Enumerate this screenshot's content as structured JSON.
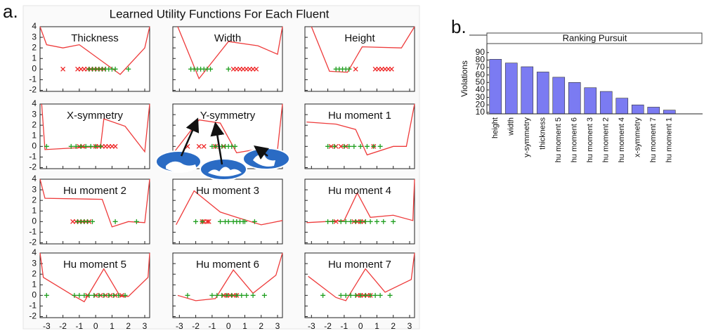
{
  "figure": {
    "title": "Learned Utility Functions For Each Fluent",
    "panel_labels": [
      "a.",
      "b."
    ]
  },
  "chart_data": [
    {
      "type": "line",
      "title": "Thickness",
      "xlim": [
        -3.4,
        3.3
      ],
      "ylim": [
        -2.1,
        4
      ],
      "xticks": [
        -3,
        -2,
        -1,
        0,
        1,
        2,
        3
      ],
      "yticks": [
        -2,
        -1,
        0,
        1,
        2,
        3,
        4
      ],
      "xtick_labels": false,
      "ytick_labels": true,
      "series": [
        {
          "color": "#ee3b3b",
          "x": [
            -3.4,
            -3,
            -2,
            -1,
            1.5,
            3,
            3.3
          ],
          "values": [
            4,
            2.3,
            2.0,
            2.3,
            -0.5,
            2,
            4
          ]
        },
        {
          "marker": "x",
          "color": "#ee2222",
          "x": [
            -2,
            -1.1,
            -0.9,
            -0.7,
            -0.5,
            -0.3,
            -0.1,
            0.1,
            0.3,
            0.5
          ],
          "values": [
            0,
            0,
            0,
            0,
            0,
            0,
            0,
            0,
            0,
            0
          ]
        },
        {
          "marker": "+",
          "color": "#22a022",
          "x": [
            -0.4,
            -0.2,
            0,
            0.2,
            0.4,
            0.6,
            0.8,
            1.0,
            1.2,
            2.0
          ],
          "values": [
            0,
            0,
            0,
            0,
            0,
            0,
            0,
            0,
            0,
            0
          ]
        }
      ]
    },
    {
      "type": "line",
      "title": "Width",
      "xlim": [
        -3.4,
        3.3
      ],
      "ylim": [
        -2.1,
        4
      ],
      "xticks": [
        -3,
        -2,
        -1,
        0,
        1,
        2,
        3
      ],
      "yticks": [
        -2,
        -1,
        0,
        1,
        2,
        3,
        4
      ],
      "xtick_labels": false,
      "ytick_labels": false,
      "series": [
        {
          "color": "#ee3b3b",
          "x": [
            -3.1,
            -1.8,
            0,
            1.8,
            3.0,
            3.3
          ],
          "values": [
            4,
            -0.9,
            2.6,
            2.2,
            1.4,
            4
          ]
        },
        {
          "marker": "x",
          "color": "#ee2222",
          "x": [
            0.3,
            0.5,
            0.7,
            0.9,
            1.1,
            1.3,
            1.5,
            1.7
          ],
          "values": [
            0,
            0,
            0,
            0,
            0,
            0,
            0,
            0
          ]
        },
        {
          "marker": "+",
          "color": "#22a022",
          "x": [
            -2.3,
            -2.1,
            -1.9,
            -1.7,
            -1.5,
            -1.3,
            -1.1,
            0.0
          ],
          "values": [
            0,
            0,
            0,
            0,
            0,
            0,
            0,
            0
          ]
        }
      ]
    },
    {
      "type": "line",
      "title": "Height",
      "xlim": [
        -3.4,
        3.3
      ],
      "ylim": [
        -2.1,
        4
      ],
      "xticks": [
        -3,
        -2,
        -1,
        0,
        1,
        2,
        3
      ],
      "yticks": [
        -2,
        -1,
        0,
        1,
        2,
        3,
        4
      ],
      "xtick_labels": false,
      "ytick_labels": false,
      "series": [
        {
          "color": "#ee3b3b",
          "x": [
            -3.0,
            -1.9,
            -0.8,
            0.1,
            2.5,
            3.3
          ],
          "values": [
            4,
            -0.2,
            -0.3,
            2.1,
            2.0,
            4
          ]
        },
        {
          "marker": "x",
          "color": "#ee2222",
          "x": [
            -0.3,
            0.9,
            1.1,
            1.3,
            1.5,
            1.7,
            1.9
          ],
          "values": [
            0,
            0,
            0,
            0,
            0,
            0,
            0
          ]
        },
        {
          "marker": "+",
          "color": "#22a022",
          "x": [
            -1.5,
            -1.3,
            -1.1,
            -0.9,
            -0.7
          ],
          "values": [
            0,
            0,
            0,
            0,
            0
          ]
        }
      ]
    },
    {
      "type": "line",
      "title": "X-symmetry",
      "xlim": [
        -3.4,
        3.3
      ],
      "ylim": [
        -2.1,
        4
      ],
      "xticks": [
        -3,
        -2,
        -1,
        0,
        1,
        2,
        3
      ],
      "yticks": [
        -2,
        -1,
        0,
        1,
        2,
        3,
        4
      ],
      "xtick_labels": false,
      "ytick_labels": true,
      "series": [
        {
          "color": "#ee3b3b",
          "x": [
            -3.3,
            -3.1,
            0.3,
            0.5,
            1.8,
            3.0,
            3.3
          ],
          "values": [
            4,
            -0.3,
            0,
            2.6,
            1.9,
            -0.5,
            4
          ]
        },
        {
          "marker": "x",
          "color": "#ee2222",
          "x": [
            -1.0,
            -0.8,
            0,
            0.2,
            0.4,
            0.6,
            0.8,
            1.0,
            1.2
          ],
          "values": [
            0,
            0,
            0,
            0,
            0,
            0,
            0,
            0,
            0
          ]
        },
        {
          "marker": "+",
          "color": "#22a022",
          "x": [
            -3.0,
            -1.5,
            -1.2,
            -0.9,
            -0.6,
            -0.3,
            0,
            0.3
          ],
          "values": [
            0,
            0,
            0,
            0,
            0,
            0,
            0,
            0
          ]
        }
      ]
    },
    {
      "type": "line",
      "title": "Y-symmetry",
      "xlim": [
        -3.4,
        3.3
      ],
      "ylim": [
        -2.1,
        4
      ],
      "xticks": [
        -3,
        -2,
        -1,
        0,
        1,
        2,
        3
      ],
      "yticks": [
        -2,
        -1,
        0,
        1,
        2,
        3,
        4
      ],
      "xtick_labels": false,
      "ytick_labels": false,
      "series": [
        {
          "color": "#ee3b3b",
          "x": [
            -3.3,
            -1.8,
            -0.5,
            0.5,
            2.0,
            3.0,
            3.3
          ],
          "values": [
            -0.5,
            2.5,
            2.2,
            -0.6,
            -0.2,
            -0.3,
            4
          ]
        },
        {
          "marker": "x",
          "color": "#ee2222",
          "x": [
            -2.5,
            -1.8,
            -1.5,
            -0.8,
            -0.3
          ],
          "values": [
            0,
            0,
            0,
            0,
            0
          ]
        },
        {
          "marker": "+",
          "color": "#22a022",
          "x": [
            -1.0,
            -0.8,
            -0.6,
            -0.4,
            -0.2,
            0,
            0.2,
            0.4
          ],
          "values": [
            0,
            0,
            0,
            0,
            0,
            0,
            0,
            0
          ]
        }
      ]
    },
    {
      "type": "line",
      "title": "Hu moment 1",
      "xlim": [
        -3.4,
        3.3
      ],
      "ylim": [
        -2.1,
        4
      ],
      "xticks": [
        -3,
        -2,
        -1,
        0,
        1,
        2,
        3
      ],
      "yticks": [
        -2,
        -1,
        0,
        1,
        2,
        3,
        4
      ],
      "xtick_labels": false,
      "ytick_labels": false,
      "series": [
        {
          "color": "#ee3b3b",
          "x": [
            -3.3,
            -1.5,
            -0.3,
            0.4,
            2.0,
            2.8,
            3.3
          ],
          "values": [
            2.3,
            2.1,
            1.6,
            -0.8,
            0,
            0,
            4
          ]
        },
        {
          "marker": "x",
          "color": "#ee2222",
          "x": [
            -1.8,
            -1.5,
            -1.2,
            -0.9,
            0.8
          ],
          "values": [
            0,
            0,
            0,
            0,
            0
          ]
        },
        {
          "marker": "+",
          "color": "#22a022",
          "x": [
            -2.0,
            -1.6,
            -1.0,
            -0.7,
            -0.4,
            0,
            0.4,
            0.8,
            1.2
          ],
          "values": [
            0,
            0,
            0,
            0,
            0,
            0,
            0,
            0,
            0
          ]
        }
      ]
    },
    {
      "type": "line",
      "title": "Hu moment 2",
      "xlim": [
        -3.4,
        3.3
      ],
      "ylim": [
        -2.1,
        4
      ],
      "xticks": [
        -3,
        -2,
        -1,
        0,
        1,
        2,
        3
      ],
      "yticks": [
        -2,
        -1,
        0,
        1,
        2,
        3,
        4
      ],
      "xtick_labels": false,
      "ytick_labels": true,
      "series": [
        {
          "color": "#ee3b3b",
          "x": [
            -3.4,
            -3.1,
            0.4,
            1.0,
            2.0,
            3.0,
            3.3
          ],
          "values": [
            4,
            2.2,
            2.1,
            -0.5,
            0,
            -0.1,
            4
          ]
        },
        {
          "marker": "x",
          "color": "#ee2222",
          "x": [
            -1.4,
            -1.2,
            -1.0,
            -0.8,
            -0.6,
            -0.4
          ],
          "values": [
            0,
            0,
            0,
            0,
            0,
            0
          ]
        },
        {
          "marker": "+",
          "color": "#22a022",
          "x": [
            -1.1,
            -0.9,
            -0.7,
            -0.5,
            -0.2,
            1.2,
            2.5
          ],
          "values": [
            0,
            0,
            0,
            0,
            0,
            0,
            0
          ]
        }
      ]
    },
    {
      "type": "line",
      "title": "Hu moment 3",
      "xlim": [
        -3.4,
        3.3
      ],
      "ylim": [
        -2.1,
        4
      ],
      "xticks": [
        -3,
        -2,
        -1,
        0,
        1,
        2,
        3
      ],
      "yticks": [
        -2,
        -1,
        0,
        1,
        2,
        3,
        4
      ],
      "xtick_labels": false,
      "ytick_labels": false,
      "series": [
        {
          "color": "#ee3b3b",
          "x": [
            -3.2,
            -2.1,
            -0.5,
            0.5,
            2.0,
            3.3
          ],
          "values": [
            -0.3,
            2.9,
            0.9,
            0.4,
            -0.3,
            0.1
          ]
        },
        {
          "marker": "x",
          "color": "#ee2222",
          "x": [
            -1.6,
            -1.5,
            -1.3,
            -1.2
          ],
          "values": [
            0,
            0,
            0,
            0
          ]
        },
        {
          "marker": "+",
          "color": "#22a022",
          "x": [
            -2.0,
            -1.6,
            -0.5,
            -0.2,
            0,
            0.3,
            0.5,
            0.7,
            0.9,
            1.0,
            1.6
          ],
          "values": [
            0,
            0,
            0,
            0,
            0,
            0,
            0,
            0,
            0,
            0,
            0
          ]
        }
      ]
    },
    {
      "type": "line",
      "title": "Hu moment 4",
      "xlim": [
        -3.4,
        3.3
      ],
      "ylim": [
        -2.1,
        4
      ],
      "xticks": [
        -3,
        -2,
        -1,
        0,
        1,
        2,
        3
      ],
      "yticks": [
        -2,
        -1,
        0,
        1,
        2,
        3,
        4
      ],
      "xtick_labels": false,
      "ytick_labels": false,
      "series": [
        {
          "color": "#ee3b3b",
          "x": [
            -3.3,
            -1.0,
            -0.2,
            0.6,
            2.0,
            3.2,
            3.3
          ],
          "values": [
            -0.1,
            0.1,
            2.7,
            0.4,
            0.6,
            0.1,
            4
          ]
        },
        {
          "marker": "x",
          "color": "#ee2222",
          "x": [
            -1.5,
            -0.4,
            -0.2,
            0,
            0.2
          ],
          "values": [
            0,
            0,
            0,
            0,
            0
          ]
        },
        {
          "marker": "+",
          "color": "#22a022",
          "x": [
            -2.0,
            -1.7,
            -1.2,
            -0.9,
            -0.6,
            -0.3,
            0,
            0.3,
            0.6,
            1.0,
            1.4,
            2.0
          ],
          "values": [
            0,
            0,
            0,
            0,
            0,
            0,
            0,
            0,
            0,
            0,
            0,
            0
          ]
        }
      ]
    },
    {
      "type": "line",
      "title": "Hu moment 5",
      "xlim": [
        -3.4,
        3.3
      ],
      "ylim": [
        -2.1,
        4
      ],
      "xticks": [
        -3,
        -2,
        -1,
        0,
        1,
        2,
        3
      ],
      "yticks": [
        -2,
        -1,
        0,
        1,
        2,
        3,
        4
      ],
      "xtick_labels": true,
      "ytick_labels": true,
      "series": [
        {
          "color": "#ee3b3b",
          "x": [
            -3.4,
            -3.2,
            -1.5,
            -0.7,
            0.5,
            1.5,
            2.0,
            3.2,
            3.3
          ],
          "values": [
            4,
            1.7,
            0.1,
            -0.6,
            2.5,
            -0.1,
            -0.1,
            1.7,
            4
          ]
        },
        {
          "marker": "x",
          "color": "#ee2222",
          "x": [
            -0.5,
            0,
            0.3,
            0.6,
            0.9,
            1.2,
            1.6
          ],
          "values": [
            0,
            0,
            0,
            0,
            0,
            0,
            0
          ]
        },
        {
          "marker": "+",
          "color": "#22a022",
          "x": [
            -3.0,
            -1.3,
            -1.0,
            -0.7,
            -0.4,
            -0.1,
            0.2,
            0.5,
            0.8,
            1.1,
            1.4,
            1.8
          ],
          "values": [
            0,
            0,
            0,
            0,
            0,
            0,
            0,
            0,
            0,
            0,
            0,
            0
          ]
        }
      ]
    },
    {
      "type": "line",
      "title": "Hu moment 6",
      "xlim": [
        -3.4,
        3.3
      ],
      "ylim": [
        -2.1,
        4
      ],
      "xticks": [
        -3,
        -2,
        -1,
        0,
        1,
        2,
        3
      ],
      "yticks": [
        -2,
        -1,
        0,
        1,
        2,
        3,
        4
      ],
      "xtick_labels": true,
      "ytick_labels": false,
      "series": [
        {
          "color": "#ee3b3b",
          "x": [
            -3.1,
            -2.0,
            -0.8,
            0.3,
            1.5,
            2.9,
            3.3
          ],
          "values": [
            0,
            -0.5,
            -0.3,
            2.4,
            0.2,
            1.9,
            4
          ]
        },
        {
          "marker": "x",
          "color": "#ee2222",
          "x": [
            -0.3,
            -0.1,
            0.1,
            0.3,
            0.5
          ],
          "values": [
            0,
            0,
            0,
            0,
            0
          ]
        },
        {
          "marker": "+",
          "color": "#22a022",
          "x": [
            -2.5,
            -1.0,
            -0.7,
            -0.4,
            -0.1,
            0.2,
            0.5,
            0.8,
            1.1,
            1.5,
            2.2
          ],
          "values": [
            0,
            0,
            0,
            0,
            0,
            0,
            0,
            0,
            0,
            0,
            0
          ]
        }
      ]
    },
    {
      "type": "line",
      "title": "Hu moment 7",
      "xlim": [
        -3.4,
        3.3
      ],
      "ylim": [
        -2.1,
        4
      ],
      "xticks": [
        -3,
        -2,
        -1,
        0,
        1,
        2,
        3
      ],
      "yticks": [
        -2,
        -1,
        0,
        1,
        2,
        3,
        4
      ],
      "xtick_labels": true,
      "ytick_labels": false,
      "series": [
        {
          "color": "#ee3b3b",
          "x": [
            -3.2,
            -1.5,
            -0.9,
            0.3,
            1.5,
            3.1,
            3.3
          ],
          "values": [
            1.8,
            -0.2,
            -0.5,
            2.5,
            0.3,
            1.5,
            4
          ]
        },
        {
          "marker": "x",
          "color": "#ee2222",
          "x": [
            -0.2,
            0,
            0.2,
            0.4,
            0.6
          ],
          "values": [
            0,
            0,
            0,
            0,
            0
          ]
        },
        {
          "marker": "+",
          "color": "#22a022",
          "x": [
            -2.3,
            -1.2,
            -0.9,
            -0.6,
            -0.3,
            0,
            0.3,
            0.6,
            0.9,
            1.2,
            1.8
          ],
          "values": [
            0,
            0,
            0,
            0,
            0,
            0,
            0,
            0,
            0,
            0,
            0
          ]
        }
      ]
    },
    {
      "type": "bar",
      "title": "Ranking Pursuit",
      "y_label": "Violations",
      "color": "#7b7bf2",
      "categories": [
        "height",
        "width",
        "y-symmetry",
        "thickness",
        "hu moment 5",
        "hu moment 6",
        "hu moment 3",
        "hu moment 2",
        "hu moment 4",
        "x-symmetry",
        "hu moment 7",
        "hu moment 1"
      ],
      "values": [
        81,
        76,
        71,
        64,
        57,
        50,
        43,
        38,
        29,
        20,
        17,
        13
      ],
      "ylim": [
        8,
        102
      ],
      "yticks": [
        10,
        20,
        30,
        40,
        50,
        60,
        70,
        80,
        90
      ]
    }
  ]
}
